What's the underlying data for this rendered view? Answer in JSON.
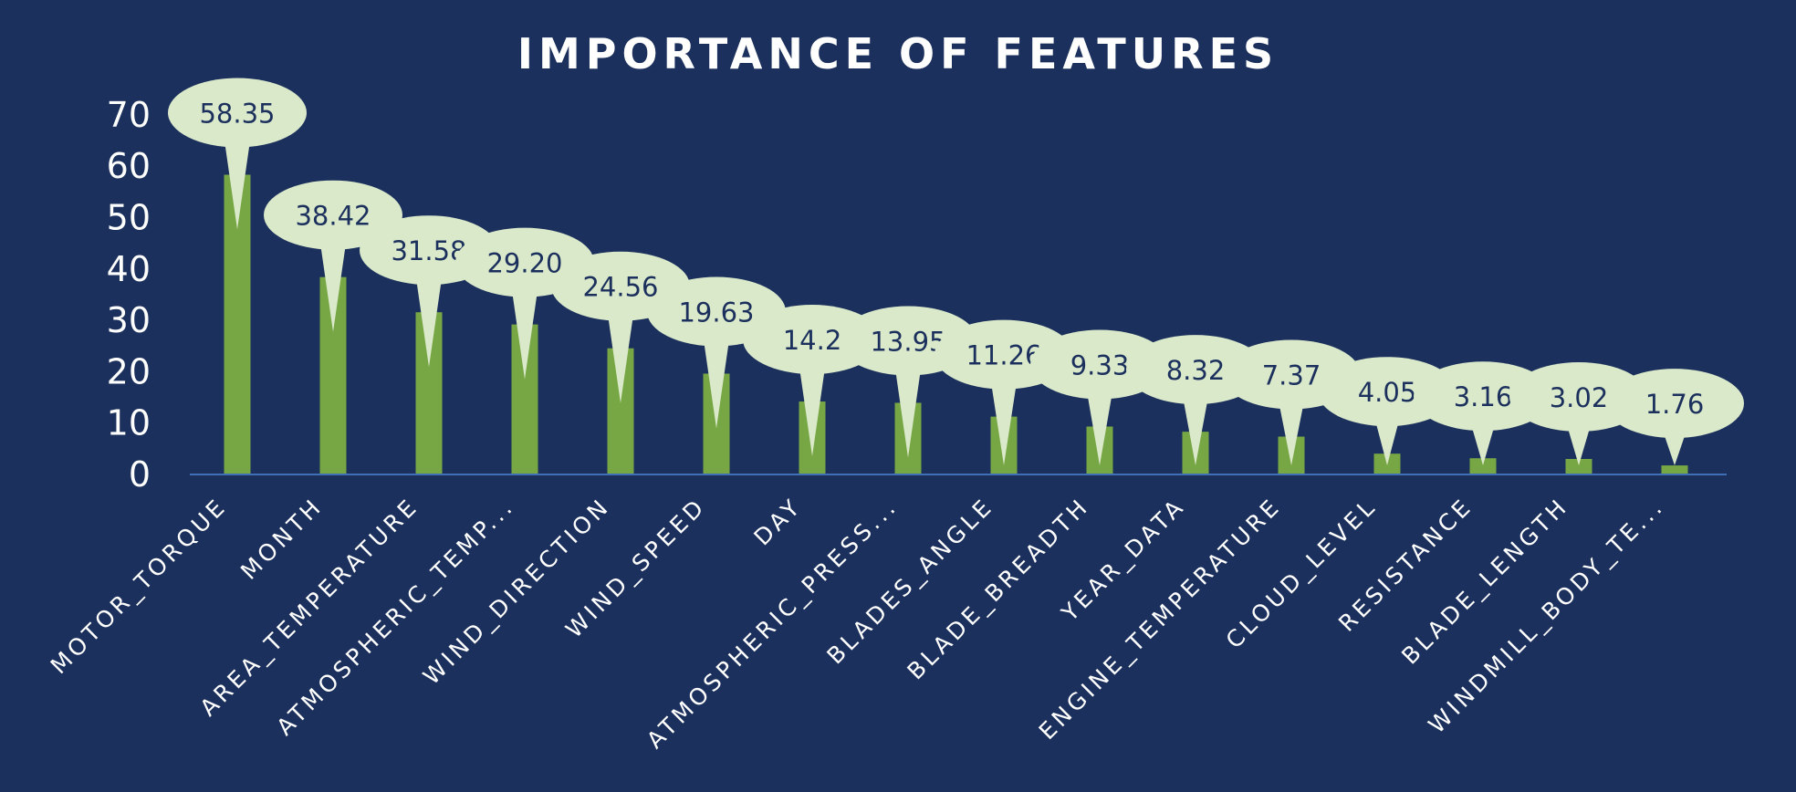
{
  "chart_data": {
    "type": "bar",
    "title": "IMPORTANCE OF FEATURES",
    "categories": [
      "MOTOR_TORQUE",
      "MONTH",
      "AREA_TEMPERATURE",
      "ATMOSPHERIC_TEMP...",
      "WIND_DIRECTION",
      "WIND_SPEED",
      "DAY",
      "ATMOSPHERIC_PRESS...",
      "BLADES_ANGLE",
      "BLADE_BREADTH",
      "YEAR_DATA",
      "ENGINE_TEMPERATURE",
      "CLOUD_LEVEL",
      "RESISTANCE",
      "BLADE_LENGTH",
      "WINDMILL_BODY_TE..."
    ],
    "values": [
      58.35,
      38.42,
      31.58,
      29.2,
      24.56,
      19.63,
      14.2,
      13.95,
      11.26,
      9.33,
      8.32,
      7.37,
      4.05,
      3.16,
      3.02,
      1.76
    ],
    "data_labels": [
      "58.35",
      "38.42",
      "31.58",
      "29.20",
      "24.56",
      "19.63",
      "14.2",
      "13.95",
      "11.26",
      "9.33",
      "8.32",
      "7.37",
      "4.05",
      "3.16",
      "3.02",
      "1.76"
    ],
    "yticks": [
      "0",
      "10",
      "20",
      "30",
      "40",
      "50",
      "60",
      "70"
    ],
    "ylim": [
      0,
      70
    ],
    "xlabel": "",
    "ylabel": "",
    "grid": false,
    "legend": "none",
    "colors": {
      "background": "#1b305c",
      "bar": "#77a745",
      "label_bubble": "#dbe9cb",
      "label_text": "#1b305c",
      "axis_line": "#3f6fb5",
      "text": "#ffffff"
    }
  }
}
